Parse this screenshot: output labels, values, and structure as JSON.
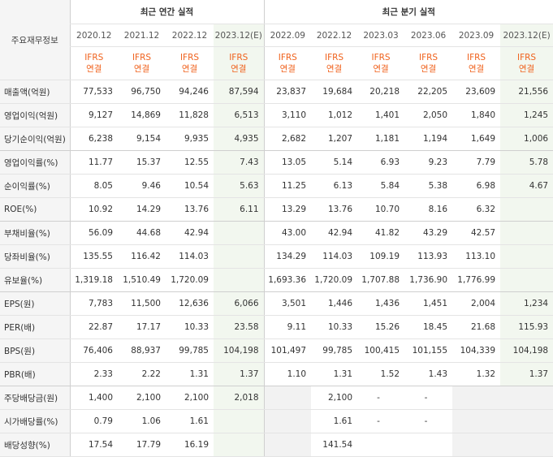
{
  "header": {
    "row_label": "주요재무정보",
    "annual_title": "최근 연간 실적",
    "quarter_title": "최근 분기 실적",
    "periods": [
      "2020.12",
      "2021.12",
      "2022.12",
      "2023.12(E)",
      "2022.09",
      "2022.12",
      "2023.03",
      "2023.06",
      "2023.09",
      "2023.12(E)"
    ],
    "standard_top": "IFRS",
    "standard_bottom": "연결"
  },
  "rows": [
    {
      "label": "매출액(억원)",
      "values": [
        "77,533",
        "96,750",
        "94,246",
        "87,594",
        "23,837",
        "19,684",
        "20,218",
        "22,205",
        "23,609",
        "21,556"
      ]
    },
    {
      "label": "영업이익(억원)",
      "values": [
        "9,127",
        "14,869",
        "11,828",
        "6,513",
        "3,110",
        "1,012",
        "1,401",
        "2,050",
        "1,840",
        "1,245"
      ]
    },
    {
      "label": "당기순이익(억원)",
      "values": [
        "6,238",
        "9,154",
        "9,935",
        "4,935",
        "2,682",
        "1,207",
        "1,181",
        "1,194",
        "1,649",
        "1,006"
      ]
    },
    {
      "label": "영업이익률(%)",
      "values": [
        "11.77",
        "15.37",
        "12.55",
        "7.43",
        "13.05",
        "5.14",
        "6.93",
        "9.23",
        "7.79",
        "5.78"
      ]
    },
    {
      "label": "순이익률(%)",
      "values": [
        "8.05",
        "9.46",
        "10.54",
        "5.63",
        "11.25",
        "6.13",
        "5.84",
        "5.38",
        "6.98",
        "4.67"
      ]
    },
    {
      "label": "ROE(%)",
      "values": [
        "10.92",
        "14.29",
        "13.76",
        "6.11",
        "13.29",
        "13.76",
        "10.70",
        "8.16",
        "6.32",
        ""
      ]
    },
    {
      "label": "부채비율(%)",
      "values": [
        "56.09",
        "44.68",
        "42.94",
        "",
        "43.00",
        "42.94",
        "41.82",
        "43.29",
        "42.57",
        ""
      ]
    },
    {
      "label": "당좌비율(%)",
      "values": [
        "135.55",
        "116.42",
        "114.03",
        "",
        "134.29",
        "114.03",
        "109.19",
        "113.93",
        "113.10",
        ""
      ]
    },
    {
      "label": "유보율(%)",
      "values": [
        "1,319.18",
        "1,510.49",
        "1,720.09",
        "",
        "1,693.36",
        "1,720.09",
        "1,707.88",
        "1,736.90",
        "1,776.99",
        ""
      ]
    },
    {
      "label": "EPS(원)",
      "values": [
        "7,783",
        "11,500",
        "12,636",
        "6,066",
        "3,501",
        "1,446",
        "1,436",
        "1,451",
        "2,004",
        "1,234"
      ]
    },
    {
      "label": "PER(배)",
      "values": [
        "22.87",
        "17.17",
        "10.33",
        "23.58",
        "9.11",
        "10.33",
        "15.26",
        "18.45",
        "21.68",
        "115.93"
      ]
    },
    {
      "label": "BPS(원)",
      "values": [
        "76,406",
        "88,937",
        "99,785",
        "104,198",
        "101,497",
        "99,785",
        "100,415",
        "101,155",
        "104,339",
        "104,198"
      ]
    },
    {
      "label": "PBR(배)",
      "values": [
        "2.33",
        "2.22",
        "1.31",
        "1.37",
        "1.10",
        "1.31",
        "1.52",
        "1.43",
        "1.32",
        "1.37"
      ]
    },
    {
      "label": "주당배당금(원)",
      "values": [
        "1,400",
        "2,100",
        "2,100",
        "2,018",
        "",
        "2,100",
        "-",
        "-",
        "",
        ""
      ]
    },
    {
      "label": "시가배당률(%)",
      "values": [
        "0.79",
        "1.06",
        "1.61",
        "",
        "",
        "1.61",
        "-",
        "-",
        "",
        ""
      ]
    },
    {
      "label": "배당성향(%)",
      "values": [
        "17.54",
        "17.79",
        "16.19",
        "",
        "",
        "141.54",
        "",
        "",
        "",
        ""
      ]
    }
  ]
}
